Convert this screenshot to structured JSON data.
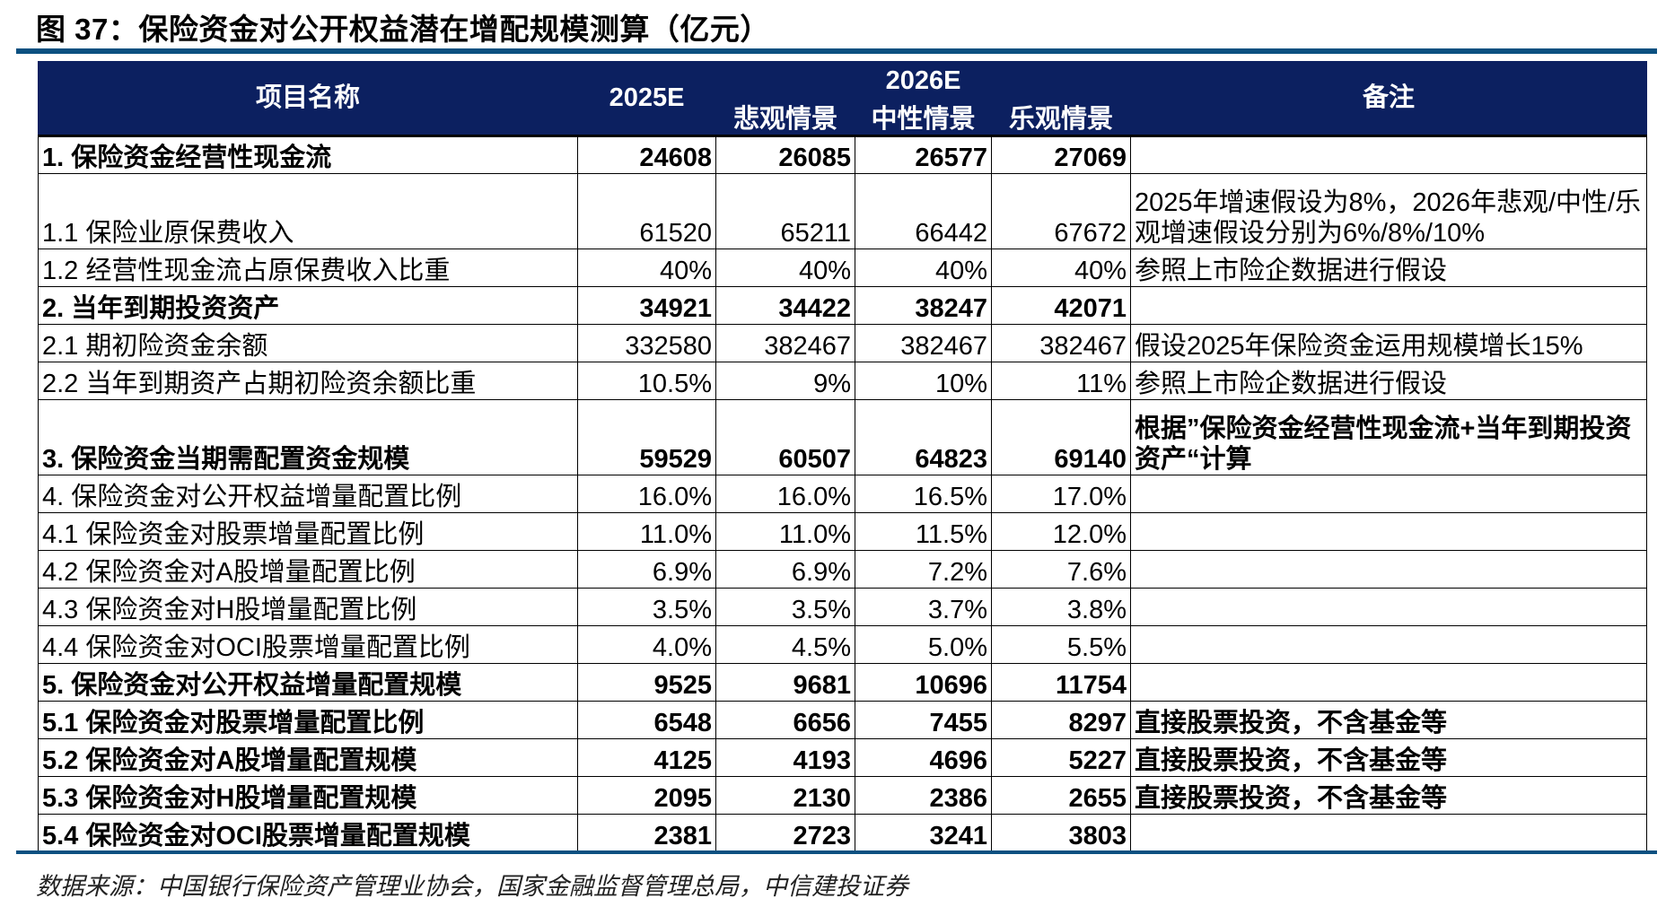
{
  "title": "图 37：保险资金对公开权益潜在增配规模测算（亿元）",
  "header": {
    "item": "项目名称",
    "y2025": "2025E",
    "y2026": "2026E",
    "pessimistic": "悲观情景",
    "neutral": "中性情景",
    "optimistic": "乐观情景",
    "note": "备注"
  },
  "rows": [
    {
      "name": "1. 保险资金经营性现金流",
      "v": [
        "24608",
        "26085",
        "26577",
        "27069"
      ],
      "note": "",
      "bold": true
    },
    {
      "name": "1.1 保险业原保费收入",
      "v": [
        "61520",
        "65211",
        "66442",
        "67672"
      ],
      "note": "2025年增速假设为8%，2026年悲观/中性/乐观增速假设分别为6%/8%/10%",
      "bold": false,
      "tall": true
    },
    {
      "name": "1.2 经营性现金流占原保费收入比重",
      "v": [
        "40%",
        "40%",
        "40%",
        "40%"
      ],
      "note": "参照上市险企数据进行假设",
      "bold": false
    },
    {
      "name": "2. 当年到期投资资产",
      "v": [
        "34921",
        "34422",
        "38247",
        "42071"
      ],
      "note": "",
      "bold": true
    },
    {
      "name": "2.1 期初险资金余额",
      "v": [
        "332580",
        "382467",
        "382467",
        "382467"
      ],
      "note": "假设2025年保险资金运用规模增长15%",
      "bold": false
    },
    {
      "name": "2.2 当年到期资产占期初险资余额比重",
      "v": [
        "10.5%",
        "9%",
        "10%",
        "11%"
      ],
      "note": "参照上市险企数据进行假设",
      "bold": false
    },
    {
      "name": "3. 保险资金当期需配置资金规模",
      "v": [
        "59529",
        "60507",
        "64823",
        "69140"
      ],
      "note": "根据”保险资金经营性现金流+当年到期投资资产“计算",
      "bold": true,
      "tall": true
    },
    {
      "name": "4. 保险资金对公开权益增量配置比例",
      "v": [
        "16.0%",
        "16.0%",
        "16.5%",
        "17.0%"
      ],
      "note": "",
      "bold": false
    },
    {
      "name": "4.1 保险资金对股票增量配置比例",
      "v": [
        "11.0%",
        "11.0%",
        "11.5%",
        "12.0%"
      ],
      "note": "",
      "bold": false
    },
    {
      "name": "4.2 保险资金对A股增量配置比例",
      "v": [
        "6.9%",
        "6.9%",
        "7.2%",
        "7.6%"
      ],
      "note": "",
      "bold": false
    },
    {
      "name": "4.3 保险资金对H股增量配置比例",
      "v": [
        "3.5%",
        "3.5%",
        "3.7%",
        "3.8%"
      ],
      "note": "",
      "bold": false
    },
    {
      "name": "4.4 保险资金对OCI股票增量配置比例",
      "v": [
        "4.0%",
        "4.5%",
        "5.0%",
        "5.5%"
      ],
      "note": "",
      "bold": false
    },
    {
      "name": "5. 保险资金对公开权益增量配置规模",
      "v": [
        "9525",
        "9681",
        "10696",
        "11754"
      ],
      "note": "",
      "bold": true
    },
    {
      "name": "5.1 保险资金对股票增量配置比例",
      "v": [
        "6548",
        "6656",
        "7455",
        "8297"
      ],
      "note": "直接股票投资，不含基金等",
      "bold": true
    },
    {
      "name": "5.2 保险资金对A股增量配置规模",
      "v": [
        "4125",
        "4193",
        "4696",
        "5227"
      ],
      "note": "直接股票投资，不含基金等",
      "bold": true
    },
    {
      "name": "5.3 保险资金对H股增量配置规模",
      "v": [
        "2095",
        "2130",
        "2386",
        "2655"
      ],
      "note": "直接股票投资，不含基金等",
      "bold": true
    },
    {
      "name": "5.4 保险资金对OCI股票增量配置规模",
      "v": [
        "2381",
        "2723",
        "3241",
        "3803"
      ],
      "note": "",
      "bold": true
    }
  ],
  "source": "数据来源：中国银行保险资产管理业协会，国家金融监督管理总局，中信建投证券",
  "colors": {
    "header_bg": "#0c2060",
    "rule": "#0b5080"
  }
}
